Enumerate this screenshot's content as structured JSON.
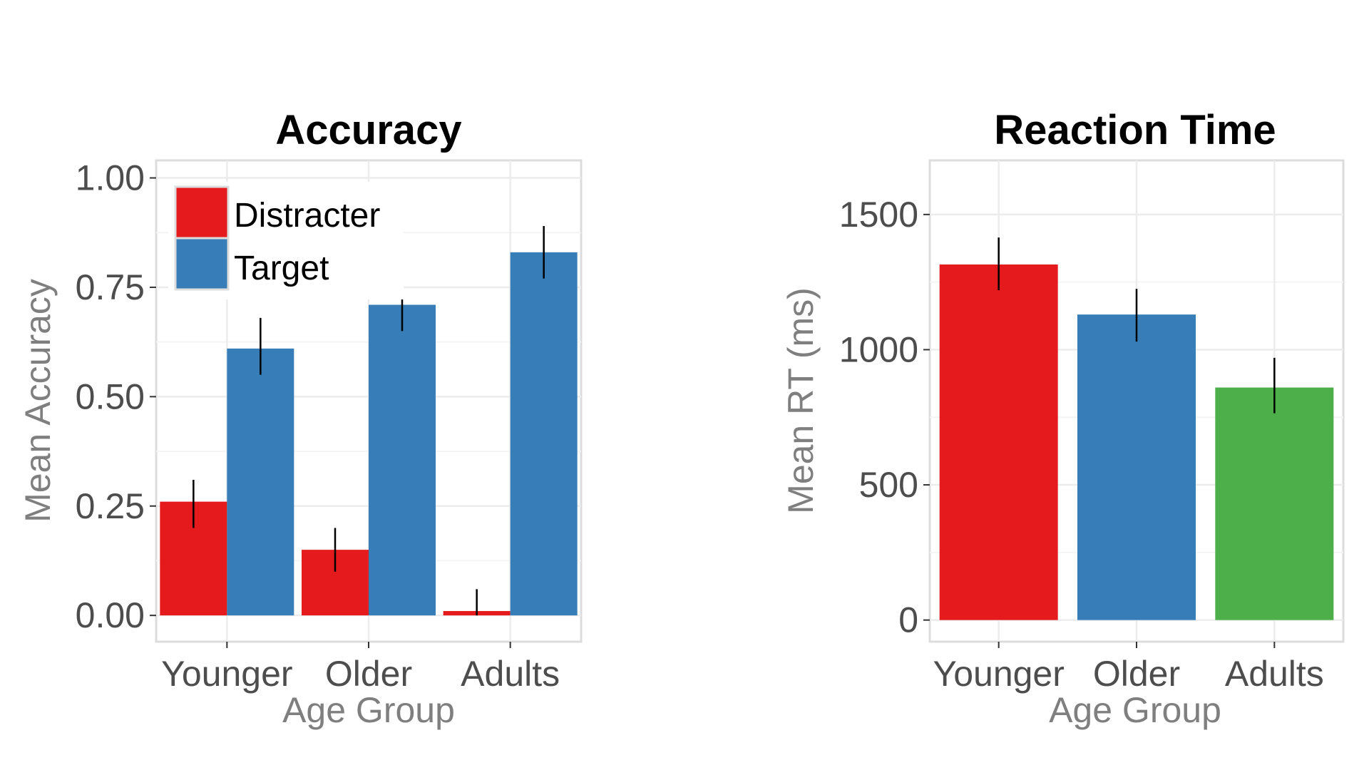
{
  "chart_data": [
    {
      "type": "bar",
      "title": "Accuracy",
      "xlabel": "Age Group",
      "ylabel": "Mean Accuracy",
      "categories": [
        "Younger",
        "Older",
        "Adults"
      ],
      "ylim": [
        -0.06,
        1.04
      ],
      "yticks": [
        0.0,
        0.25,
        0.5,
        0.75,
        1.0
      ],
      "ytick_labels": [
        "0.00",
        "0.25",
        "0.50",
        "0.75",
        "1.00"
      ],
      "grid": true,
      "legend": {
        "placement": "top-left",
        "entries": [
          {
            "label": "Distracter",
            "color": "#E41A1C"
          },
          {
            "label": "Target",
            "color": "#377EB8"
          }
        ]
      },
      "series": [
        {
          "name": "Distracter",
          "color": "#E41A1C",
          "values": [
            0.26,
            0.15,
            0.01
          ],
          "error": [
            [
              0.2,
              0.31
            ],
            [
              0.1,
              0.2
            ],
            [
              0.0,
              0.06
            ]
          ]
        },
        {
          "name": "Target",
          "color": "#377EB8",
          "values": [
            0.61,
            0.71,
            0.83
          ],
          "error": [
            [
              0.55,
              0.68
            ],
            [
              0.65,
              0.73
            ],
            [
              0.77,
              0.89
            ]
          ]
        }
      ]
    },
    {
      "type": "bar",
      "title": "Reaction Time",
      "xlabel": "Age Group",
      "ylabel": "Mean RT (ms)",
      "categories": [
        "Younger",
        "Older",
        "Adults"
      ],
      "ylim": [
        -80,
        1700
      ],
      "yticks": [
        0,
        500,
        1000,
        1500
      ],
      "ytick_labels": [
        "0",
        "500",
        "1000",
        "1500"
      ],
      "grid": true,
      "series": [
        {
          "name": "",
          "values": [
            1315,
            1130,
            860
          ],
          "colors": [
            "#E41A1C",
            "#377EB8",
            "#4DAF4A"
          ],
          "error": [
            [
              1220,
              1415
            ],
            [
              1030,
              1225
            ],
            [
              765,
              970
            ]
          ]
        }
      ]
    }
  ]
}
